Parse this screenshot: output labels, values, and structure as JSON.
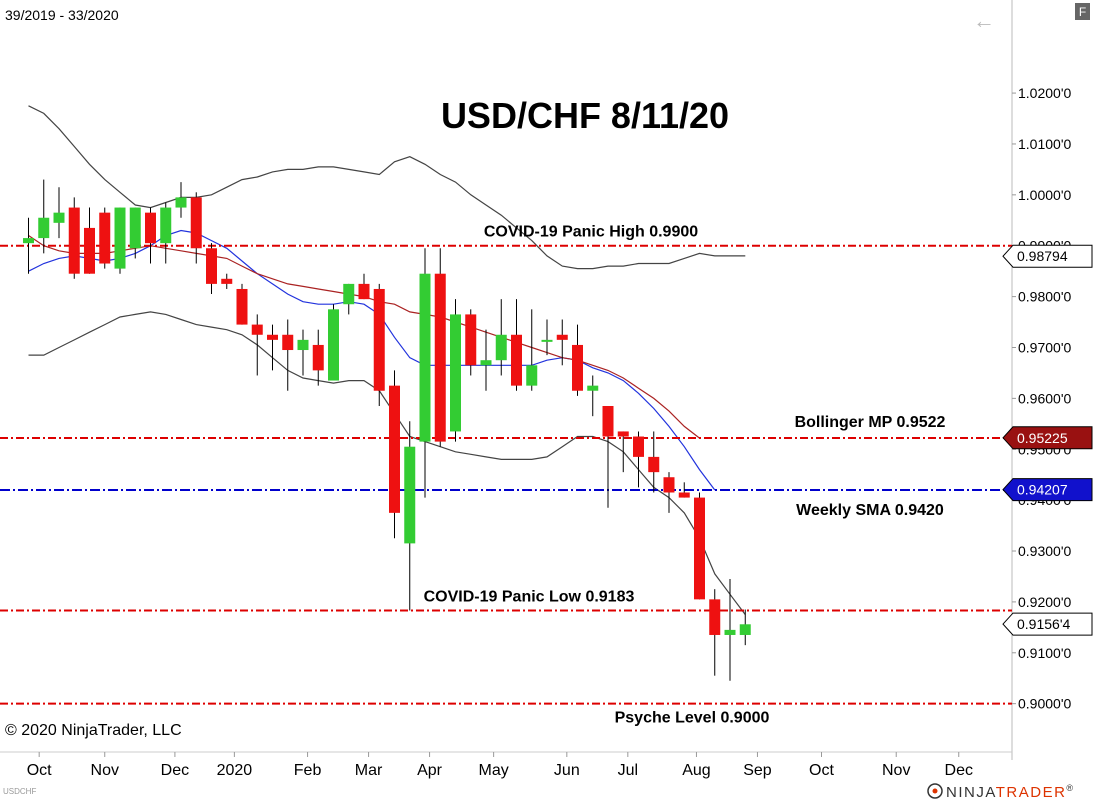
{
  "header": {
    "date_range": "39/2019 - 33/2020",
    "f_button": "F",
    "back_arrow": "←"
  },
  "footer": {
    "copyright": "© 2020 NinjaTrader, LLC",
    "instrument_tag": "USDCHF",
    "brand_prefix": "NINJA",
    "brand_suffix": "TRADER",
    "brand_mark": "®"
  },
  "colors": {
    "bull": "#33cc33",
    "bear": "#ee1111",
    "red_line": "#dd0000",
    "blue_line": "#0000cc",
    "bollinger_band": "#444444",
    "sma_fast": "#2233dd",
    "sma_slow": "#aa2222"
  },
  "chart_data": {
    "type": "candlestick",
    "title": "USD/CHF 8/11/20",
    "ylim": [
      0.8905,
      1.0265
    ],
    "y_ticks": [
      {
        "value": 1.02,
        "label": "1.0200'0"
      },
      {
        "value": 1.01,
        "label": "1.0100'0"
      },
      {
        "value": 1.0,
        "label": "1.0000'0"
      },
      {
        "value": 0.99,
        "label": "0.9900'0"
      },
      {
        "value": 0.98,
        "label": "0.9800'0"
      },
      {
        "value": 0.97,
        "label": "0.9700'0"
      },
      {
        "value": 0.96,
        "label": "0.9600'0"
      },
      {
        "value": 0.95,
        "label": "0.9500'0"
      },
      {
        "value": 0.94,
        "label": "0.9400'0"
      },
      {
        "value": 0.93,
        "label": "0.9300'0"
      },
      {
        "value": 0.92,
        "label": "0.9200'0"
      },
      {
        "value": 0.91,
        "label": "0.9100'0"
      },
      {
        "value": 0.9,
        "label": "0.9000'0"
      }
    ],
    "x_labels": [
      {
        "label": "Oct",
        "week": 0.7
      },
      {
        "label": "Nov",
        "week": 5.0
      },
      {
        "label": "Dec",
        "week": 9.6
      },
      {
        "label": "2020",
        "week": 13.5
      },
      {
        "label": "Feb",
        "week": 18.3
      },
      {
        "label": "Mar",
        "week": 22.3
      },
      {
        "label": "Apr",
        "week": 26.3
      },
      {
        "label": "May",
        "week": 30.5
      },
      {
        "label": "Jun",
        "week": 35.3
      },
      {
        "label": "Jul",
        "week": 39.3
      },
      {
        "label": "Aug",
        "week": 43.8
      },
      {
        "label": "Sep",
        "week": 47.8
      },
      {
        "label": "Oct",
        "week": 52.0
      },
      {
        "label": "Nov",
        "week": 56.9
      },
      {
        "label": "Dec",
        "week": 61.0
      }
    ],
    "candles": [
      {
        "o": 0.9905,
        "h": 0.9955,
        "l": 0.9845,
        "c": 0.9915
      },
      {
        "o": 0.9915,
        "h": 1.003,
        "l": 0.9885,
        "c": 0.9955
      },
      {
        "o": 0.9945,
        "h": 1.0015,
        "l": 0.9915,
        "c": 0.9965
      },
      {
        "o": 0.9975,
        "h": 0.9995,
        "l": 0.9835,
        "c": 0.9845
      },
      {
        "o": 0.9935,
        "h": 0.9975,
        "l": 0.9845,
        "c": 0.9845
      },
      {
        "o": 0.9965,
        "h": 0.9975,
        "l": 0.9855,
        "c": 0.9865
      },
      {
        "o": 0.9855,
        "h": 0.9975,
        "l": 0.9845,
        "c": 0.9975
      },
      {
        "o": 0.9895,
        "h": 0.9975,
        "l": 0.9875,
        "c": 0.9975
      },
      {
        "o": 0.9965,
        "h": 0.9975,
        "l": 0.9865,
        "c": 0.9905
      },
      {
        "o": 0.9905,
        "h": 0.9985,
        "l": 0.9865,
        "c": 0.9975
      },
      {
        "o": 0.9975,
        "h": 1.0025,
        "l": 0.9955,
        "c": 0.9995
      },
      {
        "o": 0.9995,
        "h": 1.0005,
        "l": 0.9865,
        "c": 0.9895
      },
      {
        "o": 0.9895,
        "h": 0.9905,
        "l": 0.9805,
        "c": 0.9825
      },
      {
        "o": 0.9835,
        "h": 0.9845,
        "l": 0.9815,
        "c": 0.9825
      },
      {
        "o": 0.9815,
        "h": 0.9825,
        "l": 0.9745,
        "c": 0.9745
      },
      {
        "o": 0.9745,
        "h": 0.9765,
        "l": 0.9645,
        "c": 0.9725
      },
      {
        "o": 0.9725,
        "h": 0.9745,
        "l": 0.9655,
        "c": 0.9715
      },
      {
        "o": 0.9725,
        "h": 0.9755,
        "l": 0.9615,
        "c": 0.9695
      },
      {
        "o": 0.9695,
        "h": 0.9735,
        "l": 0.9645,
        "c": 0.9715
      },
      {
        "o": 0.9705,
        "h": 0.9735,
        "l": 0.9625,
        "c": 0.9655
      },
      {
        "o": 0.9635,
        "h": 0.9785,
        "l": 0.9635,
        "c": 0.9775
      },
      {
        "o": 0.9785,
        "h": 0.9825,
        "l": 0.9765,
        "c": 0.9825
      },
      {
        "o": 0.9825,
        "h": 0.9845,
        "l": 0.9795,
        "c": 0.9795
      },
      {
        "o": 0.9815,
        "h": 0.9825,
        "l": 0.9585,
        "c": 0.9615
      },
      {
        "o": 0.9625,
        "h": 0.9655,
        "l": 0.9325,
        "c": 0.9375
      },
      {
        "o": 0.9315,
        "h": 0.9555,
        "l": 0.9183,
        "c": 0.9505
      },
      {
        "o": 0.9515,
        "h": 0.9895,
        "l": 0.9405,
        "c": 0.9845
      },
      {
        "o": 0.9845,
        "h": 0.9895,
        "l": 0.9505,
        "c": 0.9515
      },
      {
        "o": 0.9535,
        "h": 0.9795,
        "l": 0.9515,
        "c": 0.9765
      },
      {
        "o": 0.9765,
        "h": 0.9775,
        "l": 0.9645,
        "c": 0.9665
      },
      {
        "o": 0.9665,
        "h": 0.9735,
        "l": 0.9615,
        "c": 0.9675
      },
      {
        "o": 0.9675,
        "h": 0.9795,
        "l": 0.9645,
        "c": 0.9725
      },
      {
        "o": 0.9725,
        "h": 0.9795,
        "l": 0.9615,
        "c": 0.9625
      },
      {
        "o": 0.9625,
        "h": 0.9775,
        "l": 0.9615,
        "c": 0.9665
      },
      {
        "o": 0.9715,
        "h": 0.9755,
        "l": 0.9685,
        "c": 0.9715
      },
      {
        "o": 0.9725,
        "h": 0.9755,
        "l": 0.9665,
        "c": 0.9715
      },
      {
        "o": 0.9705,
        "h": 0.9745,
        "l": 0.9605,
        "c": 0.9615
      },
      {
        "o": 0.9615,
        "h": 0.9645,
        "l": 0.9565,
        "c": 0.9625
      },
      {
        "o": 0.9585,
        "h": 0.9585,
        "l": 0.9385,
        "c": 0.9525
      },
      {
        "o": 0.9535,
        "h": 0.9535,
        "l": 0.9455,
        "c": 0.9525
      },
      {
        "o": 0.9525,
        "h": 0.9535,
        "l": 0.9425,
        "c": 0.9485
      },
      {
        "o": 0.9485,
        "h": 0.9535,
        "l": 0.9415,
        "c": 0.9455
      },
      {
        "o": 0.9445,
        "h": 0.9455,
        "l": 0.9375,
        "c": 0.9415
      },
      {
        "o": 0.9415,
        "h": 0.9435,
        "l": 0.9405,
        "c": 0.9405
      },
      {
        "o": 0.9405,
        "h": 0.9415,
        "l": 0.9205,
        "c": 0.9205
      },
      {
        "o": 0.9205,
        "h": 0.9225,
        "l": 0.9055,
        "c": 0.9135
      },
      {
        "o": 0.9135,
        "h": 0.9245,
        "l": 0.9045,
        "c": 0.9145
      },
      {
        "o": 0.9135,
        "h": 0.9185,
        "l": 0.9115,
        "c": 0.9156
      }
    ],
    "series": [
      {
        "name": "Bollinger Upper",
        "style": "bollinger_band",
        "points": [
          [
            0,
            1.0175
          ],
          [
            1,
            1.016
          ],
          [
            2,
            1.013
          ],
          [
            3,
            1.0095
          ],
          [
            4,
            1.006
          ],
          [
            5,
            1.003
          ],
          [
            6,
            1.0005
          ],
          [
            7,
            0.998
          ],
          [
            8,
            0.9975
          ],
          [
            9,
            0.9985
          ],
          [
            10,
            0.9995
          ],
          [
            11,
            0.9995
          ],
          [
            12,
            1.0
          ],
          [
            13,
            1.0015
          ],
          [
            14,
            1.003
          ],
          [
            15,
            1.0035
          ],
          [
            16,
            1.0045
          ],
          [
            17,
            1.005
          ],
          [
            18,
            1.005
          ],
          [
            19,
            1.0055
          ],
          [
            20,
            1.0055
          ],
          [
            21,
            1.005
          ],
          [
            22,
            1.0045
          ],
          [
            23,
            1.004
          ],
          [
            24,
            1.0065
          ],
          [
            25,
            1.0075
          ],
          [
            26,
            1.006
          ],
          [
            27,
            1.004
          ],
          [
            28,
            1.0025
          ],
          [
            29,
            1.0
          ],
          [
            30,
            0.998
          ],
          [
            31,
            0.996
          ],
          [
            32,
            0.9935
          ],
          [
            33,
            0.991
          ],
          [
            34,
            0.988
          ],
          [
            35,
            0.986
          ],
          [
            36,
            0.9855
          ],
          [
            37,
            0.9855
          ],
          [
            38,
            0.986
          ],
          [
            39,
            0.986
          ],
          [
            40,
            0.9865
          ],
          [
            41,
            0.9865
          ],
          [
            42,
            0.9865
          ],
          [
            43,
            0.9875
          ],
          [
            44,
            0.9885
          ],
          [
            45,
            0.988
          ],
          [
            46,
            0.988
          ],
          [
            47,
            0.988
          ]
        ]
      },
      {
        "name": "Bollinger Lower",
        "style": "bollinger_band",
        "points": [
          [
            0,
            0.9685
          ],
          [
            1,
            0.9685
          ],
          [
            2,
            0.97
          ],
          [
            3,
            0.9715
          ],
          [
            4,
            0.973
          ],
          [
            5,
            0.9745
          ],
          [
            6,
            0.976
          ],
          [
            7,
            0.9765
          ],
          [
            8,
            0.977
          ],
          [
            9,
            0.9765
          ],
          [
            10,
            0.9755
          ],
          [
            11,
            0.9745
          ],
          [
            12,
            0.974
          ],
          [
            13,
            0.9735
          ],
          [
            14,
            0.9725
          ],
          [
            15,
            0.9705
          ],
          [
            16,
            0.968
          ],
          [
            17,
            0.9655
          ],
          [
            18,
            0.964
          ],
          [
            19,
            0.9635
          ],
          [
            20,
            0.963
          ],
          [
            21,
            0.9635
          ],
          [
            22,
            0.9635
          ],
          [
            23,
            0.9615
          ],
          [
            24,
            0.957
          ],
          [
            25,
            0.9525
          ],
          [
            26,
            0.9515
          ],
          [
            27,
            0.9505
          ],
          [
            28,
            0.9495
          ],
          [
            29,
            0.949
          ],
          [
            30,
            0.9485
          ],
          [
            31,
            0.948
          ],
          [
            32,
            0.948
          ],
          [
            33,
            0.948
          ],
          [
            34,
            0.9485
          ],
          [
            35,
            0.9505
          ],
          [
            36,
            0.9525
          ],
          [
            37,
            0.9525
          ],
          [
            38,
            0.9515
          ],
          [
            39,
            0.9495
          ],
          [
            40,
            0.946
          ],
          [
            41,
            0.9425
          ],
          [
            42,
            0.9405
          ],
          [
            43,
            0.9375
          ],
          [
            44,
            0.9325
          ],
          [
            45,
            0.9255
          ],
          [
            46,
            0.9215
          ],
          [
            47,
            0.9175
          ]
        ]
      },
      {
        "name": "Weekly SMA fast",
        "style": "sma_fast",
        "points": [
          [
            0,
            0.985
          ],
          [
            1,
            0.9865
          ],
          [
            2,
            0.9875
          ],
          [
            3,
            0.988
          ],
          [
            4,
            0.9875
          ],
          [
            5,
            0.987
          ],
          [
            6,
            0.9875
          ],
          [
            7,
            0.9885
          ],
          [
            8,
            0.99
          ],
          [
            9,
            0.992
          ],
          [
            10,
            0.993
          ],
          [
            11,
            0.9925
          ],
          [
            12,
            0.991
          ],
          [
            13,
            0.9895
          ],
          [
            14,
            0.987
          ],
          [
            15,
            0.9845
          ],
          [
            16,
            0.9825
          ],
          [
            17,
            0.9805
          ],
          [
            18,
            0.979
          ],
          [
            19,
            0.9785
          ],
          [
            20,
            0.9785
          ],
          [
            21,
            0.979
          ],
          [
            22,
            0.9785
          ],
          [
            23,
            0.9765
          ],
          [
            24,
            0.972
          ],
          [
            25,
            0.968
          ],
          [
            26,
            0.9665
          ],
          [
            27,
            0.9665
          ],
          [
            28,
            0.9665
          ],
          [
            29,
            0.9665
          ],
          [
            30,
            0.9665
          ],
          [
            31,
            0.9665
          ],
          [
            32,
            0.9665
          ],
          [
            33,
            0.9665
          ],
          [
            34,
            0.9675
          ],
          [
            35,
            0.968
          ],
          [
            36,
            0.9675
          ],
          [
            37,
            0.966
          ],
          [
            38,
            0.965
          ],
          [
            39,
            0.9635
          ],
          [
            40,
            0.961
          ],
          [
            41,
            0.958
          ],
          [
            42,
            0.9545
          ],
          [
            43,
            0.9505
          ],
          [
            44,
            0.946
          ],
          [
            45,
            0.942
          ]
        ]
      },
      {
        "name": "Weekly SMA slow",
        "style": "sma_slow",
        "points": [
          [
            0,
            0.992
          ],
          [
            1,
            0.99
          ],
          [
            2,
            0.989
          ],
          [
            3,
            0.9885
          ],
          [
            4,
            0.9885
          ],
          [
            5,
            0.9885
          ],
          [
            6,
            0.989
          ],
          [
            7,
            0.9895
          ],
          [
            8,
            0.99
          ],
          [
            9,
            0.9895
          ],
          [
            10,
            0.989
          ],
          [
            11,
            0.9885
          ],
          [
            12,
            0.988
          ],
          [
            13,
            0.9875
          ],
          [
            14,
            0.986
          ],
          [
            15,
            0.9845
          ],
          [
            16,
            0.9835
          ],
          [
            17,
            0.9825
          ],
          [
            18,
            0.982
          ],
          [
            19,
            0.9815
          ],
          [
            20,
            0.981
          ],
          [
            21,
            0.9805
          ],
          [
            22,
            0.98
          ],
          [
            23,
            0.979
          ],
          [
            24,
            0.9785
          ],
          [
            25,
            0.977
          ],
          [
            26,
            0.9765
          ],
          [
            27,
            0.976
          ],
          [
            28,
            0.975
          ],
          [
            29,
            0.974
          ],
          [
            30,
            0.973
          ],
          [
            31,
            0.972
          ],
          [
            32,
            0.971
          ],
          [
            33,
            0.97
          ],
          [
            34,
            0.969
          ],
          [
            35,
            0.968
          ],
          [
            36,
            0.9675
          ],
          [
            37,
            0.9665
          ],
          [
            38,
            0.9655
          ],
          [
            39,
            0.964
          ],
          [
            40,
            0.962
          ],
          [
            41,
            0.96
          ],
          [
            42,
            0.9575
          ],
          [
            43,
            0.9545
          ],
          [
            44,
            0.9522
          ]
        ]
      }
    ],
    "levels": [
      {
        "label": "COVID-19 Panic High 0.9900",
        "value": 0.99,
        "style": "red_line"
      },
      {
        "label": "Bollinger MP 0.9522",
        "value": 0.9522,
        "style": "red_line"
      },
      {
        "label": "Weekly SMA  0.9420",
        "value": 0.942,
        "style": "blue_line"
      },
      {
        "label": "COVID-19 Panic Low 0.9183",
        "value": 0.9183,
        "style": "red_line"
      },
      {
        "label": "Psyche Level 0.9000",
        "value": 0.9,
        "style": "red_line"
      }
    ],
    "price_tags": [
      {
        "label": "0.98794",
        "value": 0.98794,
        "bg": "#ffffff",
        "fg": "#000000"
      },
      {
        "label": "0.95225",
        "value": 0.95225,
        "bg": "#991111",
        "fg": "#ffffff"
      },
      {
        "label": "0.94207",
        "value": 0.94207,
        "bg": "#1111cc",
        "fg": "#ffffff"
      },
      {
        "label": "0.9156'4",
        "value": 0.91564,
        "bg": "#ffffff",
        "fg": "#000000"
      }
    ]
  }
}
